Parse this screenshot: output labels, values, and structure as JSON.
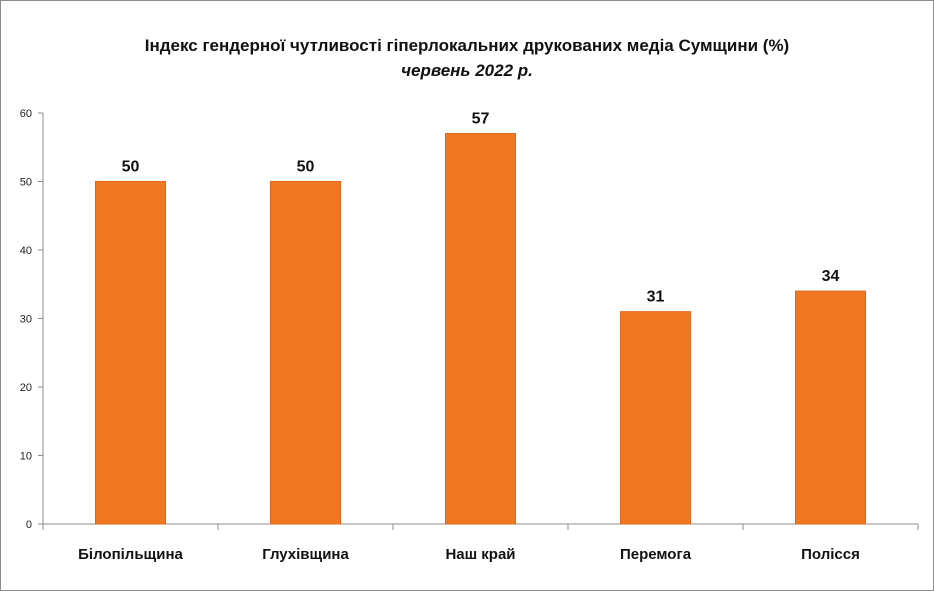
{
  "chart_data": {
    "type": "bar",
    "title": "Індекс гендерної чутливості гіперлокальних  друкованих медіа Сумщини (%)",
    "subtitle": "червень 2022 р.",
    "categories": [
      "Білопільщина",
      "Глухівщина",
      "Наш край",
      "Перемога",
      "Полісся"
    ],
    "values": [
      50,
      50,
      57,
      31,
      34
    ],
    "data_labels": [
      "50",
      "50",
      "57",
      "31",
      "34"
    ],
    "y_ticks": [
      0,
      10,
      20,
      30,
      40,
      50,
      60
    ],
    "ylim": [
      0,
      60
    ],
    "xlabel": "",
    "ylabel": "",
    "grid": false,
    "legend": "none",
    "bar_color": "#F07823",
    "bar_border_color": "#E0651A",
    "axis_color": "#8c8c8c"
  }
}
